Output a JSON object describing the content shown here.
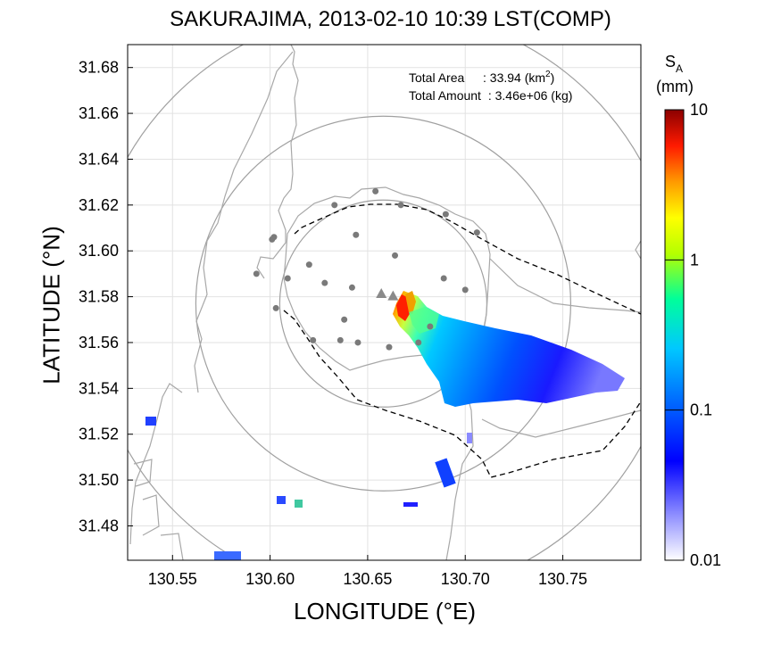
{
  "title": "SAKURAJIMA, 2013-02-10 10:39 LST(COMP)",
  "xlabel": "LONGITUDE (°E)",
  "ylabel": "LATITUDE (°N)",
  "info": {
    "area_label": "Total Area",
    "area_value": ": 33.94 (km",
    "area_sup": "2",
    "area_close": ")",
    "amount_label": "Total Amount",
    "amount_value": ": 3.46e+06 (kg)"
  },
  "map": {
    "xlim": [
      130.527,
      130.79
    ],
    "ylim": [
      31.465,
      31.69
    ],
    "x_ticks": [
      130.55,
      130.6,
      130.65,
      130.7,
      130.75
    ],
    "x_tick_labels": [
      "130.55",
      "130.60",
      "130.65",
      "130.70",
      "130.75"
    ],
    "y_ticks": [
      31.48,
      31.5,
      31.52,
      31.54,
      31.56,
      31.58,
      31.6,
      31.62,
      31.64,
      31.66,
      31.68
    ],
    "y_tick_labels": [
      "31.48",
      "31.50",
      "31.52",
      "31.54",
      "31.56",
      "31.58",
      "31.60",
      "31.62",
      "31.64",
      "31.66",
      "31.68"
    ],
    "grid": true,
    "center": [
      130.658,
      31.577
    ],
    "colors": {
      "circle": "#a0a0a0",
      "coast": "#a8a8a8",
      "dash": "#000000",
      "station": "#7a7a7a",
      "vent": "#8a8a8a"
    }
  },
  "colorbar": {
    "label_s": "S",
    "label_sub": "A",
    "label_unit": "(mm)",
    "scale": "log",
    "range": [
      0.01,
      10
    ],
    "tick_labels": [
      "10",
      "1",
      "0.1",
      "0.01"
    ],
    "tick_values": [
      10,
      1,
      0.1,
      0.01
    ],
    "colors": [
      "#ffffff",
      "#0000ff",
      "#00c8ff",
      "#00ff7f",
      "#ffff00",
      "#ff8c00",
      "#ff0000",
      "#8b0000"
    ]
  },
  "stations": [
    [
      130.654,
      31.626
    ],
    [
      130.633,
      31.62
    ],
    [
      130.667,
      31.62
    ],
    [
      130.69,
      31.616
    ],
    [
      130.706,
      31.608
    ],
    [
      130.602,
      31.606
    ],
    [
      130.601,
      31.605
    ],
    [
      130.644,
      31.607
    ],
    [
      130.664,
      31.598
    ],
    [
      130.62,
      31.594
    ],
    [
      130.593,
      31.59
    ],
    [
      130.609,
      31.588
    ],
    [
      130.628,
      31.586
    ],
    [
      130.642,
      31.584
    ],
    [
      130.689,
      31.588
    ],
    [
      130.7,
      31.583
    ],
    [
      130.603,
      31.575
    ],
    [
      130.638,
      31.57
    ],
    [
      130.682,
      31.567
    ],
    [
      130.622,
      31.561
    ],
    [
      130.636,
      31.561
    ],
    [
      130.645,
      31.56
    ],
    [
      130.661,
      31.558
    ],
    [
      130.676,
      31.56
    ]
  ],
  "vents": [
    [
      130.657,
      31.581
    ],
    [
      130.663,
      31.58
    ]
  ]
}
